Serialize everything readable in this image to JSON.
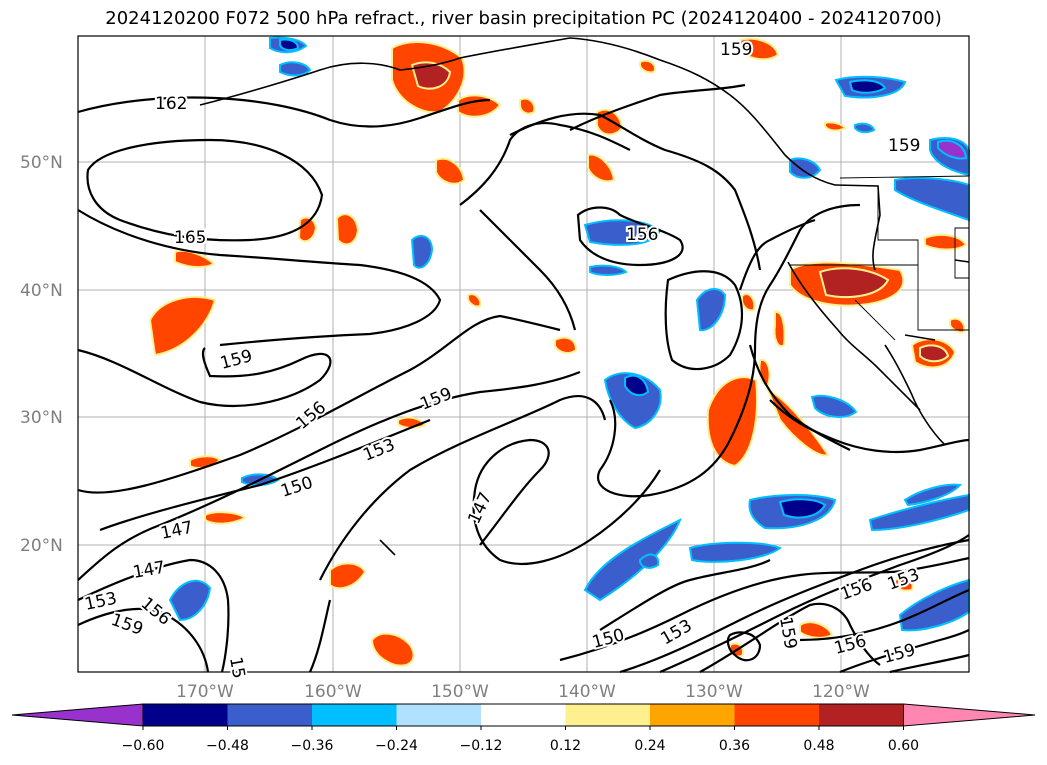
{
  "title": "2024120200 F072 500 hPa refract., river basin precipitation PC (2024120400 - 2024120700)",
  "lat_labels": [
    "50°N",
    "40°N",
    "30°N",
    "20°N"
  ],
  "lon_labels": [
    "170°W",
    "160°W",
    "150°W",
    "140°W",
    "130°W",
    "120°W"
  ],
  "contour_labels": [
    "162",
    "165",
    "159",
    "156",
    "153",
    "150",
    "147",
    "147",
    "147",
    "153",
    "156",
    "159",
    "15",
    "159",
    "156",
    "159",
    "150",
    "153",
    "156",
    "159",
    "159",
    "156",
    "159"
  ],
  "colorbar": {
    "ticks": [
      "−0.60",
      "−0.48",
      "−0.36",
      "−0.24",
      "−0.12",
      "0.12",
      "0.24",
      "0.36",
      "0.48",
      "0.60"
    ],
    "colors": [
      "#9932cc",
      "#00008b",
      "#3a5fcd",
      "#00bfff",
      "#b0e2ff",
      "#ffffff",
      "#fff08f",
      "#ffa500",
      "#ff4500",
      "#b22222",
      "#ff86b0"
    ]
  }
}
